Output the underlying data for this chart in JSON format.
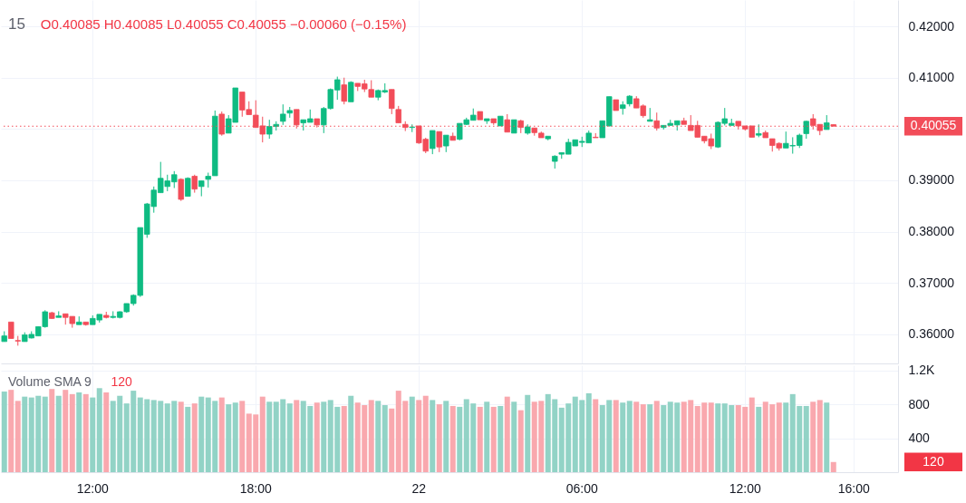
{
  "chart_data": [
    {
      "type": "candlestick",
      "title": "15",
      "subtitle": "O0.40085 H0.40085 L0.40055 C0.40055 −0.00060 (−0.15%)",
      "categories": [
        null,
        null,
        null,
        null,
        null,
        null,
        null,
        null,
        null,
        null,
        null,
        null,
        null,
        "12:00",
        null,
        null,
        null,
        null,
        null,
        null,
        null,
        null,
        null,
        null,
        null,
        null,
        null,
        null,
        null,
        null,
        null,
        null,
        null,
        null,
        null,
        null,
        null,
        "18:00",
        null,
        null,
        null,
        null,
        null,
        null,
        null,
        null,
        null,
        null,
        null,
        null,
        null,
        null,
        null,
        null,
        null,
        null,
        null,
        null,
        null,
        null,
        null,
        "22",
        null,
        null,
        null,
        null,
        null,
        null,
        null,
        null,
        null,
        null,
        null,
        null,
        null,
        null,
        null,
        null,
        null,
        null,
        null,
        null,
        null,
        null,
        null,
        "06:00",
        null,
        null,
        null,
        null,
        null,
        null,
        null,
        null,
        null,
        null,
        null,
        null,
        null,
        null,
        null,
        null,
        null,
        null,
        null,
        null,
        null,
        null,
        null,
        "12:00",
        null,
        null,
        null,
        null,
        null,
        null,
        null,
        null,
        null,
        null,
        null,
        null,
        null,
        null,
        null,
        "16:00",
        null,
        null,
        null,
        null,
        null,
        null
      ],
      "ohlc": [
        [
          0.3586,
          0.3606,
          0.3586,
          0.3597
        ],
        [
          0.3624,
          0.3624,
          0.3592,
          0.3592
        ],
        [
          0.3588,
          0.3597,
          0.3578,
          0.3587
        ],
        [
          0.3586,
          0.3604,
          0.3586,
          0.3599
        ],
        [
          0.3593,
          0.3606,
          0.3592,
          0.36
        ],
        [
          0.3597,
          0.3615,
          0.3597,
          0.3615
        ],
        [
          0.3615,
          0.3647,
          0.3613,
          0.3644
        ],
        [
          0.3642,
          0.3644,
          0.363,
          0.3631
        ],
        [
          0.3633,
          0.3645,
          0.3633,
          0.3636
        ],
        [
          0.364,
          0.364,
          0.3619,
          0.3633
        ],
        [
          0.3635,
          0.3635,
          0.3613,
          0.3621
        ],
        [
          0.3619,
          0.3635,
          0.3619,
          0.3624
        ],
        [
          0.3624,
          0.3624,
          0.3617,
          0.3619
        ],
        [
          0.3619,
          0.3637,
          0.3619,
          0.3631
        ],
        [
          0.3628,
          0.3639,
          0.3623,
          0.3639
        ],
        [
          0.3637,
          0.3644,
          0.3631,
          0.3633
        ],
        [
          0.3633,
          0.3645,
          0.3631,
          0.3635
        ],
        [
          0.3633,
          0.3645,
          0.3631,
          0.3644
        ],
        [
          0.3644,
          0.366,
          0.3642,
          0.366
        ],
        [
          0.366,
          0.3678,
          0.3656,
          0.3676
        ],
        [
          0.3676,
          0.3808,
          0.3673,
          0.3808
        ],
        [
          0.3795,
          0.3856,
          0.3788,
          0.3854
        ],
        [
          0.3849,
          0.3888,
          0.3837,
          0.3881
        ],
        [
          0.3876,
          0.3936,
          0.3876,
          0.3904
        ],
        [
          0.3888,
          0.3911,
          0.3879,
          0.3899
        ],
        [
          0.3897,
          0.3918,
          0.3885,
          0.3911
        ],
        [
          0.3902,
          0.3904,
          0.386,
          0.3863
        ],
        [
          0.3869,
          0.3906,
          0.3869,
          0.3904
        ],
        [
          0.3908,
          0.3911,
          0.3876,
          0.3883
        ],
        [
          0.3888,
          0.3899,
          0.3869,
          0.3899
        ],
        [
          0.3902,
          0.3915,
          0.3886,
          0.3908
        ],
        [
          0.3909,
          0.4036,
          0.3909,
          0.4025
        ],
        [
          0.4029,
          0.4034,
          0.3987,
          0.399
        ],
        [
          0.3992,
          0.4027,
          0.3992,
          0.402
        ],
        [
          0.4013,
          0.408,
          0.4013,
          0.408
        ],
        [
          0.4072,
          0.4072,
          0.4024,
          0.4037
        ],
        [
          0.4038,
          0.4054,
          0.4028,
          0.4028
        ],
        [
          0.4027,
          0.4056,
          0.4003,
          0.4003
        ],
        [
          0.4006,
          0.4024,
          0.3974,
          0.399
        ],
        [
          0.399,
          0.4018,
          0.3981,
          0.4005
        ],
        [
          0.4005,
          0.4015,
          0.3997,
          0.4009
        ],
        [
          0.4015,
          0.4048,
          0.4008,
          0.4029
        ],
        [
          0.4031,
          0.4043,
          0.4022,
          0.4036
        ],
        [
          0.4038,
          0.4038,
          0.4001,
          0.4008
        ],
        [
          0.4012,
          0.4018,
          0.3997,
          0.4018
        ],
        [
          0.4013,
          0.4038,
          0.4013,
          0.402
        ],
        [
          0.402,
          0.402,
          0.4003,
          0.4008
        ],
        [
          0.4008,
          0.4043,
          0.3992,
          0.404
        ],
        [
          0.404,
          0.4079,
          0.4038,
          0.4077
        ],
        [
          0.4076,
          0.4102,
          0.4057,
          0.4096
        ],
        [
          0.4086,
          0.41,
          0.4048,
          0.4054
        ],
        [
          0.4053,
          0.4093,
          0.4053,
          0.4091
        ],
        [
          0.4089,
          0.4089,
          0.4074,
          0.4083
        ],
        [
          0.4088,
          0.4096,
          0.4072,
          0.4078
        ],
        [
          0.4077,
          0.4095,
          0.4062,
          0.4062
        ],
        [
          0.4062,
          0.4077,
          0.4056,
          0.4075
        ],
        [
          0.4072,
          0.4089,
          0.407,
          0.4075
        ],
        [
          0.4077,
          0.4077,
          0.4029,
          0.404
        ],
        [
          0.4038,
          0.4045,
          0.4012,
          0.4012
        ],
        [
          0.4009,
          0.4015,
          0.3996,
          0.4003
        ],
        [
          0.4003,
          0.4009,
          0.3994,
          0.4004
        ],
        [
          0.4006,
          0.4006,
          0.3971,
          0.3973
        ],
        [
          0.398,
          0.3983,
          0.3953,
          0.3957
        ],
        [
          0.3962,
          0.3997,
          0.3951,
          0.3997
        ],
        [
          0.3995,
          0.3995,
          0.3955,
          0.3965
        ],
        [
          0.3967,
          0.3988,
          0.3955,
          0.3988
        ],
        [
          0.3986,
          0.3993,
          0.3978,
          0.3978
        ],
        [
          0.398,
          0.4011,
          0.3978,
          0.4011
        ],
        [
          0.4009,
          0.4022,
          0.4008,
          0.4018
        ],
        [
          0.4017,
          0.404,
          0.4017,
          0.4027
        ],
        [
          0.4034,
          0.4034,
          0.4018,
          0.4018
        ],
        [
          0.4016,
          0.402,
          0.401,
          0.402
        ],
        [
          0.402,
          0.402,
          0.4008,
          0.4012
        ],
        [
          0.4006,
          0.4025,
          0.4006,
          0.4025
        ],
        [
          0.4018,
          0.4029,
          0.3994,
          0.3994
        ],
        [
          0.3992,
          0.4018,
          0.3992,
          0.4018
        ],
        [
          0.4016,
          0.4018,
          0.3992,
          0.4003
        ],
        [
          0.3992,
          0.4009,
          0.3989,
          0.4004
        ],
        [
          0.4002,
          0.4002,
          0.3987,
          0.3993
        ],
        [
          0.3992,
          0.3995,
          0.3983,
          0.3983
        ],
        [
          0.3981,
          0.3986,
          0.3978,
          0.3986
        ],
        [
          0.3937,
          0.3949,
          0.3923,
          0.3947
        ],
        [
          0.3951,
          0.3954,
          0.3942,
          0.3954
        ],
        [
          0.3951,
          0.3981,
          0.3951,
          0.3974
        ],
        [
          0.3967,
          0.3979,
          0.3967,
          0.3979
        ],
        [
          0.3974,
          0.3985,
          0.3965,
          0.3976
        ],
        [
          0.3973,
          0.3997,
          0.3973,
          0.3992
        ],
        [
          0.3984,
          0.3992,
          0.3983,
          0.3983
        ],
        [
          0.3983,
          0.4016,
          0.3983,
          0.4016
        ],
        [
          0.4006,
          0.4063,
          0.4005,
          0.4063
        ],
        [
          0.4057,
          0.4057,
          0.4036,
          0.4036
        ],
        [
          0.404,
          0.4054,
          0.4028,
          0.4047
        ],
        [
          0.4049,
          0.4066,
          0.4044,
          0.4064
        ],
        [
          0.4059,
          0.4064,
          0.4041,
          0.4041
        ],
        [
          0.4045,
          0.4048,
          0.4022,
          0.4026
        ],
        [
          0.4015,
          0.4041,
          0.4015,
          0.4018
        ],
        [
          0.4016,
          0.4032,
          0.3997,
          0.4002
        ],
        [
          0.4003,
          0.4007,
          0.3999,
          0.4007
        ],
        [
          0.4007,
          0.4018,
          0.4007,
          0.4011
        ],
        [
          0.4008,
          0.4016,
          0.3997,
          0.4016
        ],
        [
          0.4016,
          0.4022,
          0.4009,
          0.4009
        ],
        [
          0.4007,
          0.4027,
          0.3997,
          0.3997
        ],
        [
          0.4007,
          0.4016,
          0.3984,
          0.3984
        ],
        [
          0.3986,
          0.3986,
          0.3972,
          0.3977
        ],
        [
          0.3981,
          0.3991,
          0.3961,
          0.3967
        ],
        [
          0.3965,
          0.4015,
          0.3963,
          0.4013
        ],
        [
          0.4011,
          0.4041,
          0.4007,
          0.402
        ],
        [
          0.4007,
          0.402,
          0.4007,
          0.4011
        ],
        [
          0.4015,
          0.4015,
          0.3999,
          0.4006
        ],
        [
          0.4006,
          0.4006,
          0.3997,
          0.4
        ],
        [
          0.4006,
          0.4006,
          0.3984,
          0.3984
        ],
        [
          0.3988,
          0.4009,
          0.3984,
          0.3991
        ],
        [
          0.3993,
          0.3997,
          0.3983,
          0.3983
        ],
        [
          0.3981,
          0.3981,
          0.3956,
          0.3968
        ],
        [
          0.3972,
          0.3974,
          0.3958,
          0.3963
        ],
        [
          0.3963,
          0.3995,
          0.3963,
          0.3972
        ],
        [
          0.3967,
          0.3984,
          0.3952,
          0.3968
        ],
        [
          0.3968,
          0.3991,
          0.3963,
          0.3988
        ],
        [
          0.3991,
          0.4016,
          0.3981,
          0.4015
        ],
        [
          0.402,
          0.4029,
          0.3999,
          0.4007
        ],
        [
          0.4009,
          0.4009,
          0.3988,
          0.3997
        ],
        [
          0.3999,
          0.4027,
          0.3999,
          0.4012
        ],
        [
          0.40085,
          0.40085,
          0.40055,
          0.40055
        ],
        null,
        null,
        null,
        null,
        null,
        null,
        null,
        null,
        null
      ],
      "colors": [
        "#0ebb82",
        "#f24d59",
        "#f24d59",
        "#0ebb82",
        "#0ebb82",
        "#0ebb82",
        "#0ebb82",
        "#f24d59",
        "#0ebb82",
        "#f24d59",
        "#f24d59",
        "#0ebb82",
        "#f24d59",
        "#0ebb82",
        "#0ebb82",
        "#f24d59",
        "#0ebb82",
        "#0ebb82",
        "#0ebb82",
        "#0ebb82",
        "#0ebb82",
        "#0ebb82",
        "#0ebb82",
        "#0ebb82",
        "#0ebb82",
        "#0ebb82",
        "#f24d59",
        "#0ebb82",
        "#f24d59",
        "#0ebb82",
        "#0ebb82",
        "#0ebb82",
        "#f24d59",
        "#0ebb82",
        "#0ebb82",
        "#f24d59",
        "#f24d59",
        "#f24d59",
        "#f24d59",
        "#0ebb82",
        "#0ebb82",
        "#0ebb82",
        "#0ebb82",
        "#f24d59",
        "#0ebb82",
        "#0ebb82",
        "#f24d59",
        "#0ebb82",
        "#0ebb82",
        "#0ebb82",
        "#f24d59",
        "#0ebb82",
        "#f24d59",
        "#f24d59",
        "#f24d59",
        "#0ebb82",
        "#0ebb82",
        "#f24d59",
        "#f24d59",
        "#f24d59",
        "#0ebb82",
        "#f24d59",
        "#f24d59",
        "#0ebb82",
        "#f24d59",
        "#0ebb82",
        "#f24d59",
        "#0ebb82",
        "#0ebb82",
        "#0ebb82",
        "#f24d59",
        "#0ebb82",
        "#f24d59",
        "#0ebb82",
        "#f24d59",
        "#0ebb82",
        "#f24d59",
        "#0ebb82",
        "#f24d59",
        "#f24d59",
        "#0ebb82",
        "#0ebb82",
        "#0ebb82",
        "#0ebb82",
        "#0ebb82",
        "#0ebb82",
        "#0ebb82",
        "#f24d59",
        "#0ebb82",
        "#0ebb82",
        "#f24d59",
        "#0ebb82",
        "#0ebb82",
        "#f24d59",
        "#f24d59",
        "#0ebb82",
        "#f24d59",
        "#0ebb82",
        "#0ebb82",
        "#0ebb82",
        "#f24d59",
        "#f24d59",
        "#f24d59",
        "#f24d59",
        "#f24d59",
        "#0ebb82",
        "#0ebb82",
        "#0ebb82",
        "#f24d59",
        "#f24d59",
        "#f24d59",
        "#0ebb82",
        "#f24d59",
        "#f24d59",
        "#f24d59",
        "#0ebb82",
        "#0ebb82",
        "#0ebb82",
        "#0ebb82",
        "#f24d59",
        "#f24d59",
        "#0ebb82",
        "#f24d59",
        null,
        null,
        null,
        null,
        null,
        null,
        null,
        null,
        null
      ],
      "ylim": [
        0.35434,
        0.42513
      ],
      "yticks": [
        {
          "value": 0.36,
          "label": "0.36000"
        },
        {
          "value": 0.37,
          "label": "0.37000"
        },
        {
          "value": 0.38,
          "label": "0.38000"
        },
        {
          "value": 0.39,
          "label": "0.39000"
        },
        {
          "value": 0.4,
          "label": null
        },
        {
          "value": 0.41,
          "label": "0.41000"
        },
        {
          "value": 0.42,
          "label": "0.42000"
        }
      ],
      "grid": true,
      "tick_labels": "y",
      "ref_lines": [
        {
          "axis": "y",
          "value": 0.40055,
          "label": "0.40055",
          "color": "#f24d59",
          "line_style": "dotted"
        }
      ]
    },
    {
      "type": "bar",
      "title": "Volume SMA 9",
      "annotations": [
        "120",
        "120"
      ],
      "categories": [
        null,
        null,
        null,
        null,
        null,
        null,
        null,
        null,
        null,
        null,
        null,
        null,
        null,
        "12:00",
        null,
        null,
        null,
        null,
        null,
        null,
        null,
        null,
        null,
        null,
        null,
        null,
        null,
        null,
        null,
        null,
        null,
        null,
        null,
        null,
        null,
        null,
        null,
        "18:00",
        null,
        null,
        null,
        null,
        null,
        null,
        null,
        null,
        null,
        null,
        null,
        null,
        null,
        null,
        null,
        null,
        null,
        null,
        null,
        null,
        null,
        null,
        null,
        "22",
        null,
        null,
        null,
        null,
        null,
        null,
        null,
        null,
        null,
        null,
        null,
        null,
        null,
        null,
        null,
        null,
        null,
        null,
        null,
        null,
        null,
        null,
        null,
        "06:00",
        null,
        null,
        null,
        null,
        null,
        null,
        null,
        null,
        null,
        null,
        null,
        null,
        null,
        null,
        null,
        null,
        null,
        null,
        null,
        null,
        null,
        null,
        null,
        "12:00",
        null,
        null,
        null,
        null,
        null,
        null,
        null,
        null,
        null,
        null,
        null,
        null,
        null,
        null,
        null,
        "16:00",
        null,
        null,
        null,
        null,
        null,
        null
      ],
      "values": [
        950,
        970,
        840,
        890,
        880,
        900,
        890,
        980,
        900,
        970,
        920,
        940,
        920,
        880,
        990,
        940,
        840,
        900,
        810,
        960,
        880,
        860,
        850,
        840,
        810,
        840,
        830,
        770,
        810,
        890,
        880,
        840,
        880,
        800,
        820,
        840,
        690,
        680,
        890,
        830,
        830,
        860,
        810,
        850,
        840,
        780,
        820,
        830,
        850,
        770,
        780,
        900,
        820,
        790,
        850,
        840,
        790,
        750,
        960,
        840,
        890,
        850,
        900,
        850,
        800,
        840,
        780,
        770,
        860,
        810,
        770,
        830,
        770,
        780,
        890,
        830,
        730,
        910,
        830,
        840,
        920,
        860,
        760,
        810,
        890,
        850,
        930,
        860,
        790,
        850,
        850,
        820,
        840,
        830,
        800,
        800,
        840,
        790,
        830,
        820,
        830,
        850,
        780,
        820,
        820,
        810,
        810,
        790,
        790,
        770,
        880,
        770,
        830,
        800,
        820,
        820,
        920,
        780,
        780,
        830,
        850,
        820,
        120,
        null,
        null,
        null,
        null,
        null,
        null,
        null,
        null,
        null
      ],
      "colors": [
        "#92d3c6",
        "#f9a8ae",
        "#f9a8ae",
        "#92d3c6",
        "#92d3c6",
        "#92d3c6",
        "#92d3c6",
        "#f9a8ae",
        "#92d3c6",
        "#f9a8ae",
        "#f9a8ae",
        "#92d3c6",
        "#f9a8ae",
        "#92d3c6",
        "#92d3c6",
        "#f9a8ae",
        "#92d3c6",
        "#92d3c6",
        "#92d3c6",
        "#92d3c6",
        "#92d3c6",
        "#92d3c6",
        "#92d3c6",
        "#92d3c6",
        "#92d3c6",
        "#92d3c6",
        "#f9a8ae",
        "#92d3c6",
        "#f9a8ae",
        "#92d3c6",
        "#92d3c6",
        "#92d3c6",
        "#f9a8ae",
        "#92d3c6",
        "#92d3c6",
        "#f9a8ae",
        "#f9a8ae",
        "#f9a8ae",
        "#f9a8ae",
        "#92d3c6",
        "#92d3c6",
        "#92d3c6",
        "#92d3c6",
        "#f9a8ae",
        "#92d3c6",
        "#92d3c6",
        "#f9a8ae",
        "#92d3c6",
        "#92d3c6",
        "#92d3c6",
        "#f9a8ae",
        "#92d3c6",
        "#f9a8ae",
        "#f9a8ae",
        "#f9a8ae",
        "#92d3c6",
        "#92d3c6",
        "#f9a8ae",
        "#f9a8ae",
        "#f9a8ae",
        "#92d3c6",
        "#f9a8ae",
        "#f9a8ae",
        "#92d3c6",
        "#f9a8ae",
        "#92d3c6",
        "#f9a8ae",
        "#92d3c6",
        "#92d3c6",
        "#92d3c6",
        "#f9a8ae",
        "#92d3c6",
        "#f9a8ae",
        "#92d3c6",
        "#f9a8ae",
        "#92d3c6",
        "#f9a8ae",
        "#92d3c6",
        "#f9a8ae",
        "#f9a8ae",
        "#92d3c6",
        "#92d3c6",
        "#92d3c6",
        "#92d3c6",
        "#92d3c6",
        "#92d3c6",
        "#92d3c6",
        "#f9a8ae",
        "#92d3c6",
        "#92d3c6",
        "#f9a8ae",
        "#92d3c6",
        "#92d3c6",
        "#f9a8ae",
        "#f9a8ae",
        "#92d3c6",
        "#f9a8ae",
        "#92d3c6",
        "#92d3c6",
        "#92d3c6",
        "#f9a8ae",
        "#f9a8ae",
        "#f9a8ae",
        "#f9a8ae",
        "#f9a8ae",
        "#92d3c6",
        "#92d3c6",
        "#92d3c6",
        "#f9a8ae",
        "#f9a8ae",
        "#f9a8ae",
        "#92d3c6",
        "#f9a8ae",
        "#f9a8ae",
        "#f9a8ae",
        "#92d3c6",
        "#92d3c6",
        "#92d3c6",
        "#92d3c6",
        "#f9a8ae",
        "#f9a8ae",
        "#92d3c6",
        "#f9a8ae",
        null,
        null,
        null,
        null,
        null,
        null,
        null,
        null,
        null
      ],
      "ylim": [
        0,
        1260
      ],
      "yticks": [
        400,
        800,
        {
          "value": 1200,
          "label": "1.2K"
        }
      ],
      "grid": true
    }
  ]
}
